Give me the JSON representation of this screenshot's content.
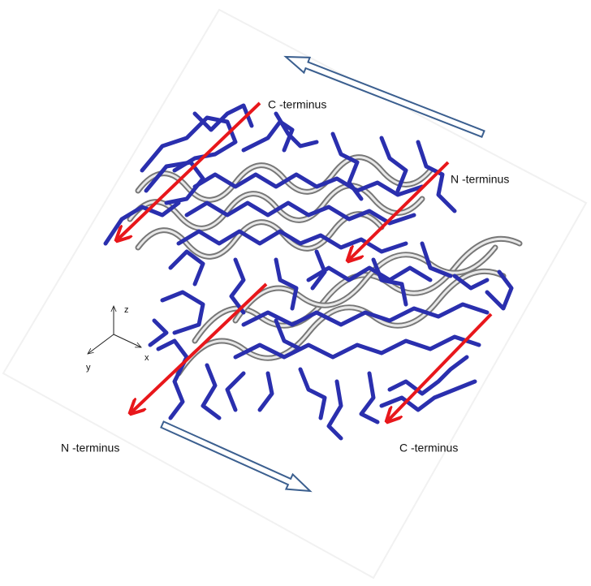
{
  "terminus_labels": [
    "C -terminus",
    "N -terminus",
    "N -terminus",
    "C -terminus"
  ],
  "axes": {
    "z": "z",
    "x": "x",
    "y": "y"
  }
}
